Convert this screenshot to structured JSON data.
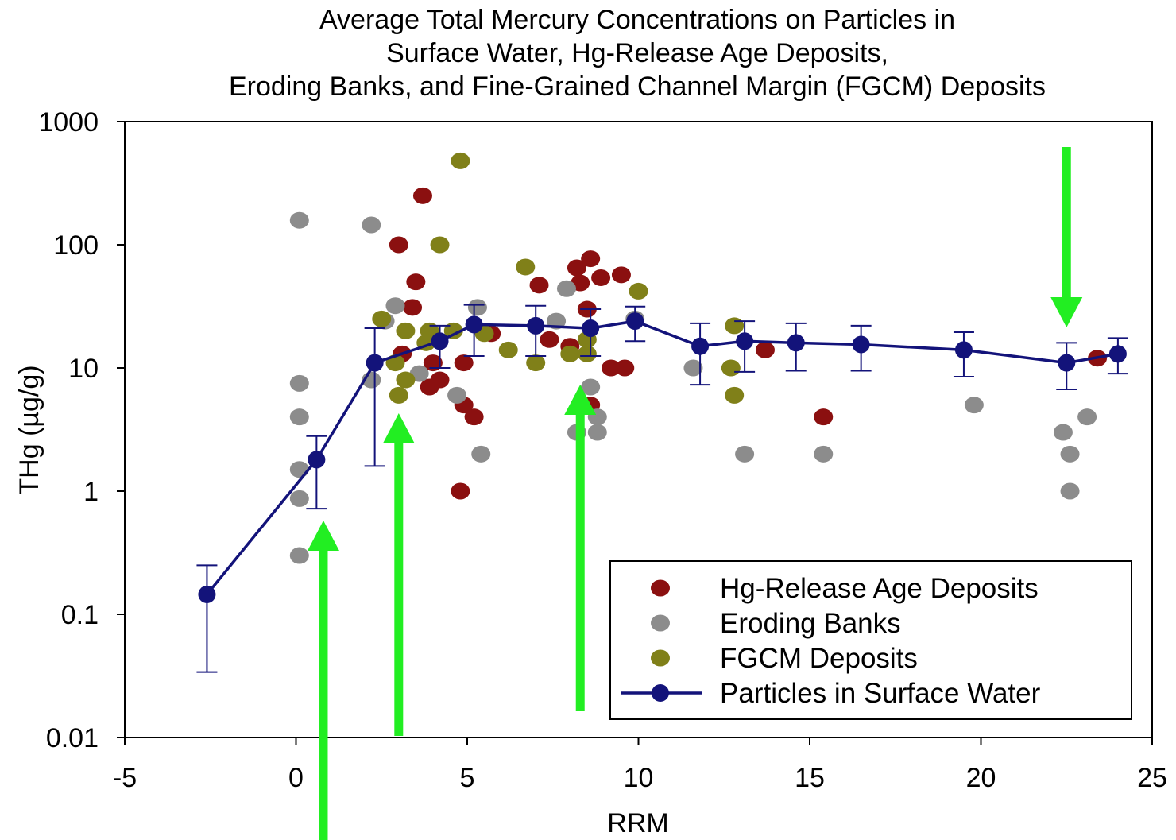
{
  "chart_data": {
    "type": "scatter",
    "title": [
      "Average Total Mercury Concentrations on Particles in",
      "Surface Water, Hg-Release Age Deposits,",
      "Eroding Banks, and Fine-Grained Channel Margin (FGCM) Deposits"
    ],
    "xlabel": "RRM",
    "ylabel": "THg (µg/g)",
    "xlim": [
      -5,
      25
    ],
    "ylim": [
      0.01,
      1000
    ],
    "y_scale": "log",
    "x_ticks": [
      -5,
      0,
      5,
      10,
      15,
      20,
      25
    ],
    "y_ticks": [
      {
        "value": 0.01,
        "label": "0.01"
      },
      {
        "value": 0.1,
        "label": "0.1"
      },
      {
        "value": 1,
        "label": "1"
      },
      {
        "value": 10,
        "label": "10"
      },
      {
        "value": 100,
        "label": "100"
      },
      {
        "value": 1000,
        "label": "1000"
      }
    ],
    "grid": false,
    "legend_position": "bottom-right",
    "series": [
      {
        "name": "Hg-Release Age Deposits",
        "kind": "scatter",
        "color": "#8b1010",
        "points": [
          [
            3.0,
            100
          ],
          [
            3.7,
            250
          ],
          [
            3.5,
            50
          ],
          [
            3.4,
            31
          ],
          [
            3.1,
            13
          ],
          [
            4.0,
            11
          ],
          [
            3.9,
            7
          ],
          [
            4.2,
            8
          ],
          [
            4.9,
            11
          ],
          [
            4.9,
            5
          ],
          [
            5.2,
            4
          ],
          [
            4.8,
            1
          ],
          [
            5.7,
            19
          ],
          [
            7.1,
            47
          ],
          [
            8.2,
            65
          ],
          [
            8.6,
            77
          ],
          [
            8.3,
            49
          ],
          [
            8.9,
            54
          ],
          [
            9.5,
            57
          ],
          [
            7.4,
            17
          ],
          [
            8.0,
            15
          ],
          [
            8.5,
            30
          ],
          [
            9.2,
            10
          ],
          [
            9.6,
            10
          ],
          [
            8.6,
            5
          ],
          [
            13.7,
            14
          ],
          [
            15.4,
            4
          ],
          [
            23.4,
            12
          ]
        ]
      },
      {
        "name": "Eroding Banks",
        "kind": "scatter",
        "color": "#8c8c8c",
        "points": [
          [
            0.1,
            158
          ],
          [
            0.1,
            7.5
          ],
          [
            0.1,
            4
          ],
          [
            0.1,
            1.5
          ],
          [
            0.1,
            0.87
          ],
          [
            0.1,
            0.3
          ],
          [
            2.2,
            145
          ],
          [
            2.2,
            8
          ],
          [
            2.6,
            24
          ],
          [
            2.9,
            32
          ],
          [
            3.6,
            9
          ],
          [
            4.7,
            6
          ],
          [
            5.3,
            31
          ],
          [
            5.4,
            2
          ],
          [
            7.6,
            24
          ],
          [
            7.9,
            44
          ],
          [
            8.6,
            7
          ],
          [
            8.8,
            4
          ],
          [
            8.8,
            3
          ],
          [
            8.2,
            3
          ],
          [
            9.9,
            25
          ],
          [
            11.6,
            10
          ],
          [
            13.1,
            2
          ],
          [
            15.4,
            2
          ],
          [
            19.8,
            5
          ],
          [
            22.4,
            3
          ],
          [
            22.6,
            2
          ],
          [
            22.6,
            1
          ],
          [
            23.1,
            4
          ]
        ]
      },
      {
        "name": "FGCM Deposits",
        "kind": "scatter",
        "color": "#808019",
        "points": [
          [
            4.8,
            480
          ],
          [
            4.2,
            100
          ],
          [
            6.7,
            66
          ],
          [
            10.0,
            42
          ],
          [
            2.5,
            25
          ],
          [
            3.2,
            20
          ],
          [
            3.9,
            20
          ],
          [
            3.8,
            16
          ],
          [
            4.6,
            20
          ],
          [
            5.5,
            19
          ],
          [
            2.9,
            11
          ],
          [
            3.2,
            8
          ],
          [
            3.0,
            6
          ],
          [
            6.2,
            14
          ],
          [
            7.0,
            11
          ],
          [
            8.0,
            13
          ],
          [
            8.5,
            13
          ],
          [
            8.5,
            17
          ],
          [
            12.8,
            22
          ],
          [
            12.7,
            10
          ],
          [
            12.8,
            6
          ]
        ]
      },
      {
        "name": "Particles in Surface Water",
        "kind": "line",
        "color": "#13137a",
        "points": [
          [
            -2.6,
            0.145
          ],
          [
            0.6,
            1.8
          ],
          [
            2.3,
            11
          ],
          [
            4.2,
            16.5
          ],
          [
            5.2,
            22.5
          ],
          [
            7.0,
            22
          ],
          [
            8.6,
            21
          ],
          [
            9.9,
            24
          ],
          [
            11.8,
            15
          ],
          [
            13.1,
            16.5
          ],
          [
            14.6,
            16
          ],
          [
            16.5,
            15.5
          ],
          [
            19.5,
            14
          ],
          [
            22.5,
            11
          ],
          [
            24.0,
            13
          ]
        ],
        "error_low": [
          0.034,
          0.72,
          1.6,
          10,
          12.5,
          12.5,
          12.5,
          16.5,
          7.3,
          9.3,
          9.5,
          9.5,
          8.5,
          6.7,
          9
        ],
        "error_high": [
          0.25,
          2.8,
          21,
          22,
          32.5,
          32,
          30,
          31.5,
          23,
          24,
          23,
          22,
          19.5,
          16,
          17.5
        ]
      }
    ],
    "annotations": [
      {
        "type": "arrow",
        "direction": "up",
        "x": 0.8,
        "color": "#22ee22"
      },
      {
        "type": "arrow",
        "direction": "up",
        "x": 3.0,
        "color": "#22ee22"
      },
      {
        "type": "arrow",
        "direction": "up",
        "x": 8.3,
        "color": "#22ee22"
      },
      {
        "type": "arrow",
        "direction": "down",
        "x": 22.5,
        "color": "#22ee22"
      }
    ]
  }
}
